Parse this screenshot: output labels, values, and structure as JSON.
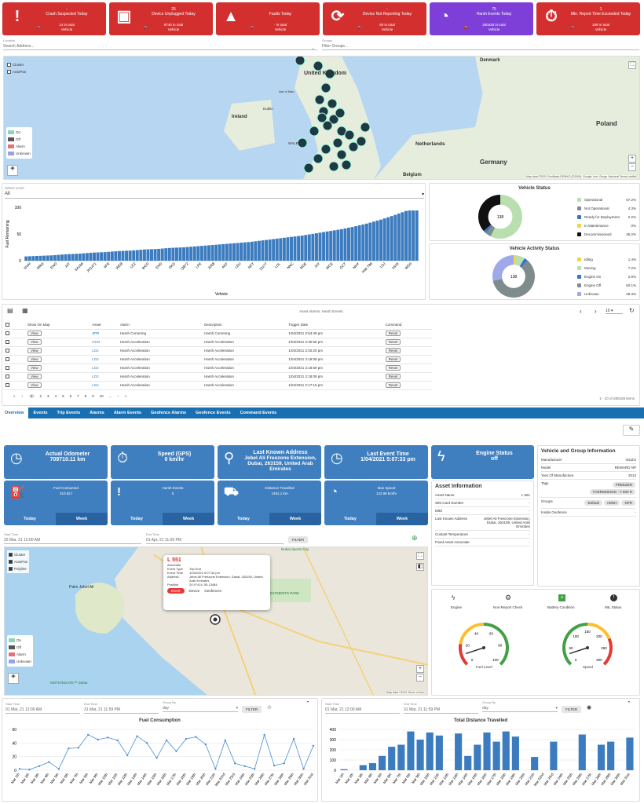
{
  "kpis": [
    {
      "count": "-",
      "title": "Crash Suspected Today",
      "total": "14 in total",
      "unit": "Vehicle",
      "icon": "alert-icon",
      "color": "red"
    },
    {
      "count": "25",
      "title": "Device Unplugged Today",
      "total": "9740 in total",
      "unit": "Vehicle",
      "icon": "chip-icon",
      "color": "red"
    },
    {
      "count": "",
      "title": "Faults Today",
      "total": "- in total",
      "unit": "Vehicle",
      "icon": "warning-icon",
      "color": "red"
    },
    {
      "count": "-",
      "title": "Device Not Reporting Today",
      "total": "60 in total",
      "unit": "Vehicle",
      "icon": "sync-icon",
      "color": "red"
    },
    {
      "count": "75",
      "title": "Harsh Events Today",
      "total": "280428 in total",
      "unit": "Vehicle",
      "icon": "speedometer-icon",
      "color": "purple"
    },
    {
      "count": "1",
      "title": "Min. Report Time Exceeded Today",
      "total": "109 in total",
      "unit": "Vehicle",
      "icon": "stopwatch-icon",
      "color": "red"
    }
  ],
  "filters": {
    "location_label": "Location",
    "location_placeholder": "Search Address...",
    "groups_label": "Groups",
    "groups_placeholder": "Filter Groups..."
  },
  "map1": {
    "cluster": "Cluster",
    "autopan": "AutoPan",
    "legend": [
      "On",
      "Off",
      "Alarm",
      "Unknown"
    ],
    "labels": {
      "uk": "United Kingdom",
      "ireland": "Ireland",
      "denmark": "Denmark",
      "netherlands": "Netherlands",
      "germany": "Germany",
      "poland": "Poland",
      "belgium": "Belgium",
      "dublin": "Dublin",
      "wales": "WALES",
      "isle": "Isle of Man"
    },
    "attribution": "Map data ©2021 GeoBasis-DE/BKG (©2009), Google, Inst. Geogr. Nacional  Terms  Leaflet"
  },
  "fuel_chart": {
    "select_label": "Select Level",
    "select_value": "All",
    "ylabel": "Fuel Remaining",
    "xlabel": "Vehicle",
    "yticks": [
      "100",
      "50",
      "0"
    ]
  },
  "chart_data": [
    {
      "type": "bar",
      "title": "",
      "ylabel": "Fuel Remaining",
      "xlabel": "Vehicle",
      "ylim": [
        0,
        100
      ],
      "categories": [
        "NVAI",
        "MRG",
        "ENO",
        "JAT",
        "SA166",
        "JH1471",
        "4FR",
        "WEB",
        "LEZ",
        "WCD",
        "EHD",
        "DKD",
        "QB72",
        "LPE",
        "2058",
        "AKF",
        "LEU",
        "NZY",
        "21177",
        "LDL",
        "NNC",
        "MDE",
        "JAY",
        "WCE",
        "GCT",
        "NHX",
        "Halt T86",
        "LDJ",
        "1616",
        "WDS"
      ],
      "values": [
        8,
        9,
        10,
        12,
        13,
        15,
        16,
        18,
        19,
        21,
        22,
        24,
        25,
        27,
        29,
        31,
        33,
        35,
        38,
        41,
        44,
        47,
        51,
        55,
        59,
        64,
        70,
        77,
        85,
        94
      ]
    },
    {
      "type": "pie",
      "title": "Vehicle Status",
      "center": "138",
      "slices": [
        {
          "label": "Operational",
          "value": 57.2,
          "color": "#b9dfb0"
        },
        {
          "label": "Not Operational",
          "value": 4.3,
          "color": "#7f8c8d"
        },
        {
          "label": "Ready for Deployment",
          "value": 2.2,
          "color": "#3b73c4"
        },
        {
          "label": "In Maintenance",
          "value": 0,
          "color": "#f5d342"
        },
        {
          "label": "Decommissioned",
          "value": 36.2,
          "color": "#111111"
        }
      ]
    },
    {
      "type": "pie",
      "title": "Vehicle Activity Status",
      "center": "138",
      "slices": [
        {
          "label": "Idling",
          "value": 1.4,
          "color": "#f5d342"
        },
        {
          "label": "Moving",
          "value": 7.2,
          "color": "#b9dfb0"
        },
        {
          "label": "Engine On",
          "value": 2.9,
          "color": "#3b73c4"
        },
        {
          "label": "Engine Off",
          "value": 60.1,
          "color": "#7f8c8d"
        },
        {
          "label": "Unknown",
          "value": 28.3,
          "color": "#9fa8e8"
        }
      ]
    },
    {
      "type": "line",
      "title": "Fuel Consumption",
      "ylim": [
        0,
        60
      ],
      "yticks": [
        0,
        20,
        40,
        60
      ],
      "categories": [
        "Mar 1th",
        "Mar 2th",
        "Mar 3th",
        "Mar 4th",
        "Mar 5th",
        "Mar 6th",
        "Mar 7th",
        "Mar 8th",
        "Mar 9th",
        "Mar 10th",
        "Mar 11th",
        "Mar 12th",
        "Mar 13th",
        "Mar 14th",
        "Mar 15th",
        "Mar 16th",
        "Mar 17th",
        "Mar 18th",
        "Mar 19th",
        "Mar 20th",
        "Mar 21th",
        "Mar 22nd",
        "Mar 23rd",
        "Mar 24th",
        "Mar 25th",
        "Mar 26th",
        "Mar 27th",
        "Mar 28th",
        "Mar 29th",
        "Mar 30th",
        "Mar 31st"
      ],
      "values": [
        2,
        1,
        6,
        12,
        2,
        32,
        33,
        52,
        45,
        48,
        44,
        22,
        50,
        40,
        18,
        44,
        28,
        46,
        49,
        38,
        2,
        44,
        10,
        6,
        2,
        52,
        7,
        10,
        46,
        2,
        36
      ]
    },
    {
      "type": "bar",
      "title": "Total Distance Travelled",
      "ylim": [
        0,
        400
      ],
      "yticks": [
        0,
        100,
        200,
        300,
        400
      ],
      "categories": [
        "Mar 1th",
        "Mar 2th",
        "Mar 3th",
        "Mar 4th",
        "Mar 5th",
        "Mar 6th",
        "Mar 7th",
        "Mar 8th",
        "Mar 9th",
        "Mar 10th",
        "Mar 11th",
        "Mar 12th",
        "Mar 13th",
        "Mar 14th",
        "Mar 15th",
        "Mar 16th",
        "Mar 17th",
        "Mar 18th",
        "Mar 19th",
        "Mar 20th",
        "Mar 21th",
        "Mar 22nd",
        "Mar 23rd",
        "Mar 24th",
        "Mar 25th",
        "Mar 26th",
        "Mar 27th",
        "Mar 28th",
        "Mar 29th",
        "Mar 30th",
        "Mar 31st"
      ],
      "values": [
        10,
        0,
        50,
        70,
        140,
        230,
        250,
        380,
        300,
        370,
        340,
        0,
        360,
        140,
        250,
        370,
        280,
        380,
        330,
        0,
        130,
        0,
        280,
        0,
        0,
        350,
        0,
        250,
        280,
        0,
        320
      ]
    }
  ],
  "alarms": {
    "title": "Asset Alarms: Harsh Events",
    "per_page": "10",
    "columns": [
      "Show On Map",
      "Asset",
      "Alarm",
      "Description",
      "Trigger Date",
      "Command"
    ],
    "rows": [
      {
        "view": "View",
        "asset": "ZPR",
        "alarm": "Harsh Cornering",
        "desc": "Harsh Cornering",
        "date": "1/04/2021 2:54:49 pm",
        "cmd": "Reset"
      },
      {
        "view": "View",
        "asset": "CCO",
        "alarm": "Harsh Acceleration",
        "desc": "Harsh Acceleration",
        "date": "1/04/2021 2:30:55 pm",
        "cmd": "Reset"
      },
      {
        "view": "View",
        "asset": "LOJ",
        "alarm": "Harsh Acceleration",
        "desc": "Harsh Acceleration",
        "date": "1/04/2021 2:20:20 pm",
        "cmd": "Reset"
      },
      {
        "view": "View",
        "asset": "LOJ",
        "alarm": "Harsh Acceleration",
        "desc": "Harsh Acceleration",
        "date": "1/04/2021 2:19:08 pm",
        "cmd": "Reset"
      },
      {
        "view": "View",
        "asset": "LOJ",
        "alarm": "Harsh Acceleration",
        "desc": "Harsh Acceleration",
        "date": "1/04/2021 2:18:59 pm",
        "cmd": "Reset"
      },
      {
        "view": "View",
        "asset": "LOJ",
        "alarm": "Harsh Acceleration",
        "desc": "Harsh Acceleration",
        "date": "1/04/2021 2:18:09 pm",
        "cmd": "Reset"
      },
      {
        "view": "View",
        "asset": "LOJ",
        "alarm": "Harsh Acceleration",
        "desc": "Harsh Acceleration",
        "date": "1/04/2021 2:17:15 pm",
        "cmd": "Reset"
      }
    ],
    "pages": [
      "1",
      "2",
      "3",
      "4",
      "5",
      "6",
      "7",
      "8",
      "9",
      "10",
      "..."
    ],
    "range": "1 - 10 of 280428 items"
  },
  "tabs": [
    "Overview",
    "Events",
    "Trip Events",
    "Alarms",
    "Alarm Events",
    "Geofence Alarms",
    "Geofence Events",
    "Command Events"
  ],
  "cards": {
    "odometer": {
      "label": "Actual Odometer",
      "value": "709710.11 km"
    },
    "speed": {
      "label": "Speed (GPS)",
      "value": "0 km/hr"
    },
    "address": {
      "label": "Last Known Address",
      "value": "Jebel Ali Freezone Extension, Dubai, 263159, United Arab Emirates"
    },
    "event_time": {
      "label": "Last Event Time",
      "value": "1/04/2021 5:07:33 pm"
    },
    "engine": {
      "label": "Engine Status",
      "value": "off"
    }
  },
  "stats": [
    {
      "label": "Fuel Consumed",
      "value": "210.82 l",
      "today": "Today",
      "week": "Week"
    },
    {
      "label": "Harsh Events",
      "value": "0",
      "today": "Today",
      "week": "Week"
    },
    {
      "label": "Distance Travelled",
      "value": "1491.1 km",
      "today": "Today",
      "week": "Week"
    },
    {
      "label": "Max Speed",
      "value": "122.98 km/hr",
      "today": "Today",
      "week": "Week"
    }
  ],
  "asset_info": {
    "title": "Asset Information",
    "rows": [
      {
        "k": "Asset Name",
        "v": "L 551"
      },
      {
        "k": "SIM Card Number",
        "v": "-"
      },
      {
        "k": "IMEI",
        "v": "-"
      },
      {
        "k": "Last Known Address",
        "v": "Jebel Ali Freezone Extension, Dubai, 263159, United Arab Emirates"
      },
      {
        "k": "Coolant Temperature",
        "v": "-"
      },
      {
        "k": "Fixed Asset Associate",
        "v": "-"
      }
    ]
  },
  "vehicle_info": {
    "title": "Vehicle and Group Information",
    "manufacturer_k": "Manufacturer",
    "manufacturer_v": "ISUZU",
    "model_k": "Model",
    "model_v": "REWARD NP",
    "year_k": "Year Of Manufacture",
    "year_v": "2013",
    "tags_k": "Tags",
    "tags": [
      "FREEZER",
      "THERMOKING - T 600 R"
    ],
    "groups_k": "Groups",
    "groups": [
      "Default",
      "ADNH",
      "NPR"
    ],
    "geofence_k": "Inside Geofence",
    "geofence_v": "-"
  },
  "trip_filter": {
    "start_label": "Start Time",
    "start": "25 Mar, 21 12:00 AM",
    "end_label": "End Time",
    "end": "01 Apr, 21 11:59 PM",
    "filter": "FILTER"
  },
  "map2": {
    "cluster": "Cluster",
    "autopan": "AutoPan",
    "polyline": "Polyline",
    "legend": [
      "On",
      "Off",
      "Alarm",
      "Unknown"
    ],
    "popup": {
      "title": "L 551",
      "assoc": "Associate",
      "type_k": "Event Type",
      "type_v": "Trip End",
      "time_k": "Event Time",
      "time_v": "1/04/2021 5:07:33 pm",
      "addr_k": "Address",
      "addr_v": "Jebel Ali Freezone Extension, Dubai, 263159, United Arab Emirates",
      "pos_k": "Position",
      "pos_v": "24.97414, 55.13484",
      "btn_event": "Event",
      "btn_device": "Device",
      "btn_geo": "Geofences"
    },
    "labels": {
      "palm": "Palm Jebel Ali",
      "dsc": "Dubai Sports City",
      "park": "INVESTMENTS PARK",
      "motion": "MOTIONGATE™ Dubai"
    },
    "attribution": "Map data ©2021  Terms of Use"
  },
  "diagnostics": {
    "engine": "Engine",
    "nonreport": "Non-Report Check",
    "battery": "Battery Condition",
    "mil": "MIL Status",
    "fuel_label": "Fuel Level",
    "speed_label": "Speed",
    "fuel_ticks": [
      "0",
      "20",
      "40",
      "60",
      "80",
      "100"
    ],
    "speed_ticks": [
      "0",
      "50",
      "100",
      "150",
      "200",
      "250",
      "300"
    ]
  },
  "bottom_left": {
    "start_label": "Start Time",
    "start": "01 Mar, 21 12:00 AM",
    "end_label": "End Time",
    "end": "31 Mar, 21 11:59 PM",
    "group_label": "Group By",
    "group": "day",
    "filter": "FILTER"
  },
  "bottom_right": {
    "start_label": "Start Time",
    "start": "01 Mar, 21 12:00 AM",
    "end_label": "End Time",
    "end": "31 Mar, 21 11:59 PM",
    "group_label": "Group By",
    "group": "day",
    "filter": "FILTER"
  }
}
